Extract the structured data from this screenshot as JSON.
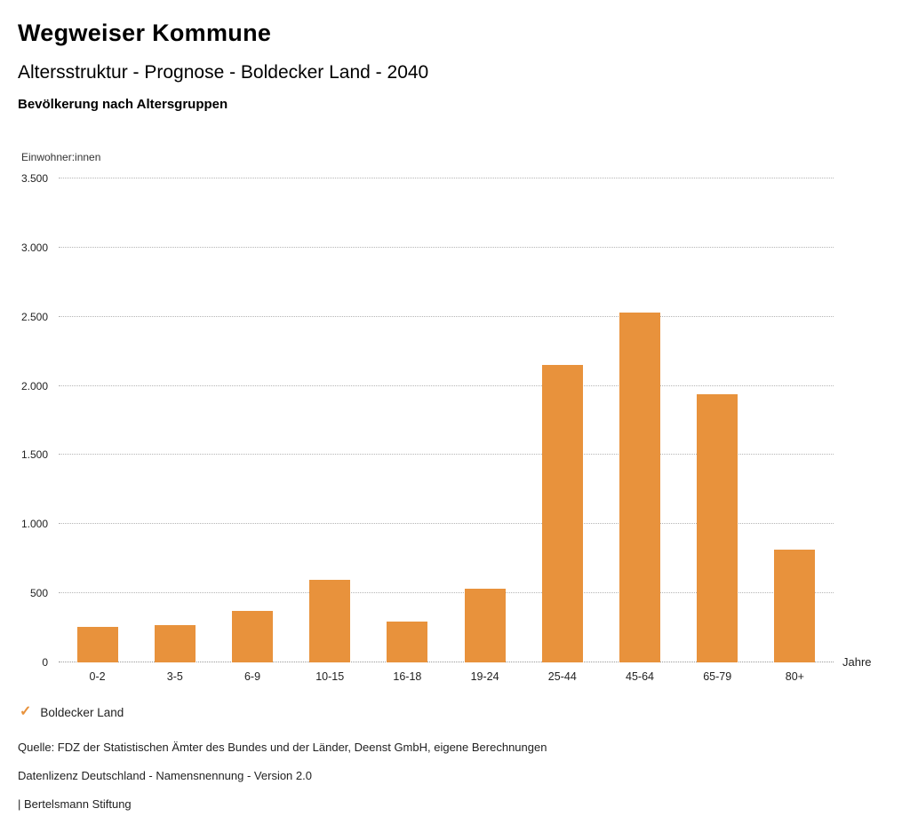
{
  "header": {
    "title": "Wegweiser Kommune",
    "subtitle": "Altersstruktur - Prognose - Boldecker Land - 2040",
    "chart_title": "Bevölkerung nach Altersgruppen"
  },
  "chart_data": {
    "type": "bar",
    "title": "Bevölkerung nach Altersgruppen",
    "unit_label": "Einwohner:innen",
    "xlabel": "Jahre",
    "ylabel": "Einwohner:innen",
    "categories": [
      "0-2",
      "3-5",
      "6-9",
      "10-15",
      "16-18",
      "19-24",
      "25-44",
      "45-64",
      "65-79",
      "80+"
    ],
    "series": [
      {
        "name": "Boldecker Land",
        "values": [
          260,
          270,
          370,
          600,
          295,
          530,
          2150,
          2530,
          1940,
          815
        ]
      }
    ],
    "ylim": [
      0,
      3500
    ],
    "yticks": [
      0,
      500,
      1000,
      1500,
      2000,
      2500,
      3000,
      3500
    ],
    "ytick_labels": [
      "0",
      "500",
      "1.000",
      "1.500",
      "2.000",
      "2.500",
      "3.000",
      "3.500"
    ],
    "grid": true,
    "bar_color": "#E8923C",
    "legend_position": "bottom"
  },
  "legend": {
    "check_icon": "✓",
    "label": "Boldecker Land"
  },
  "footer": {
    "line1": "Quelle: FDZ der Statistischen Ämter des Bundes und der Länder, Deenst GmbH, eigene Berechnungen",
    "line2": "Datenlizenz Deutschland - Namensnennung - Version 2.0",
    "line3": "| Bertelsmann Stiftung"
  }
}
